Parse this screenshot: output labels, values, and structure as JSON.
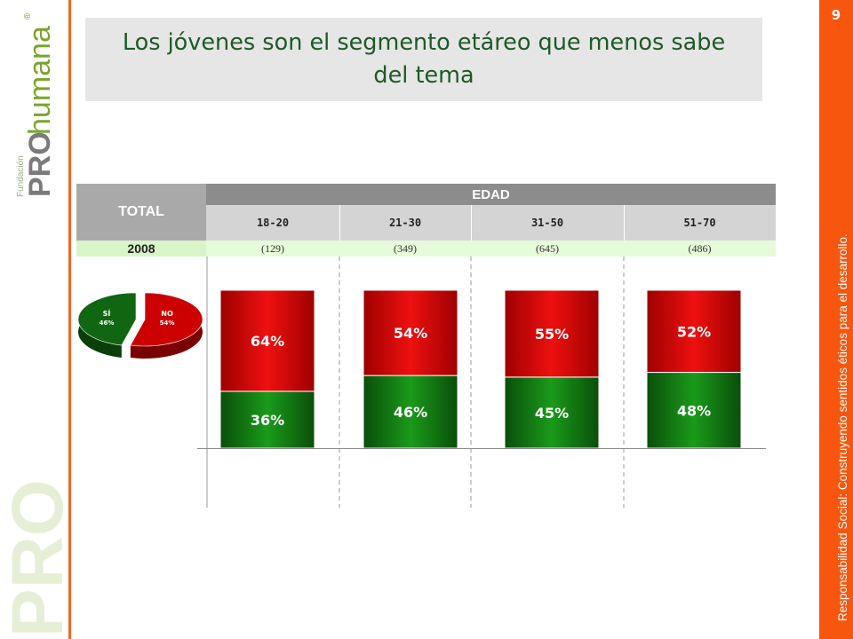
{
  "page_number": "9",
  "title": "Los jóvenes son el segmento etáreo que menos sabe del tema",
  "side_text": "Responsabilidad Social: Construyendo sentidos éticos para el desarrollo.",
  "logo": {
    "small_text": "Fundación",
    "brand": "PRO",
    "brand_suffix": "humana",
    "registered": "®",
    "watermark": "PRO"
  },
  "table": {
    "total_label": "TOTAL",
    "group_label": "EDAD",
    "year": "2008",
    "columns": [
      {
        "age": "18-20",
        "n": "(129)"
      },
      {
        "age": "21-30",
        "n": "(349)"
      },
      {
        "age": "31-50",
        "n": "(645)"
      },
      {
        "age": "51-70",
        "n": "(486)"
      }
    ]
  },
  "colors": {
    "accent": "#f7560f",
    "red": "#d90000",
    "green": "#117a11",
    "title_green": "#1d5a26"
  },
  "chart_data": [
    {
      "type": "pie",
      "labels": [
        "SÍ",
        "NO"
      ],
      "values": [
        46,
        54
      ],
      "value_labels": [
        "46%",
        "54%"
      ],
      "colors": [
        "#116611",
        "#cc0000"
      ]
    },
    {
      "type": "bar",
      "stacked": true,
      "categories": [
        "18-20",
        "21-30",
        "31-50",
        "51-70"
      ],
      "series": [
        {
          "values": [
            36,
            46,
            45,
            48
          ],
          "labels": [
            "36%",
            "46%",
            "45%",
            "48%"
          ],
          "color": "#117a11"
        },
        {
          "values": [
            64,
            54,
            55,
            52
          ],
          "labels": [
            "64%",
            "54%",
            "55%",
            "52%"
          ],
          "color": "#d90000"
        }
      ],
      "ylim": [
        0,
        100
      ],
      "grid": false
    }
  ]
}
